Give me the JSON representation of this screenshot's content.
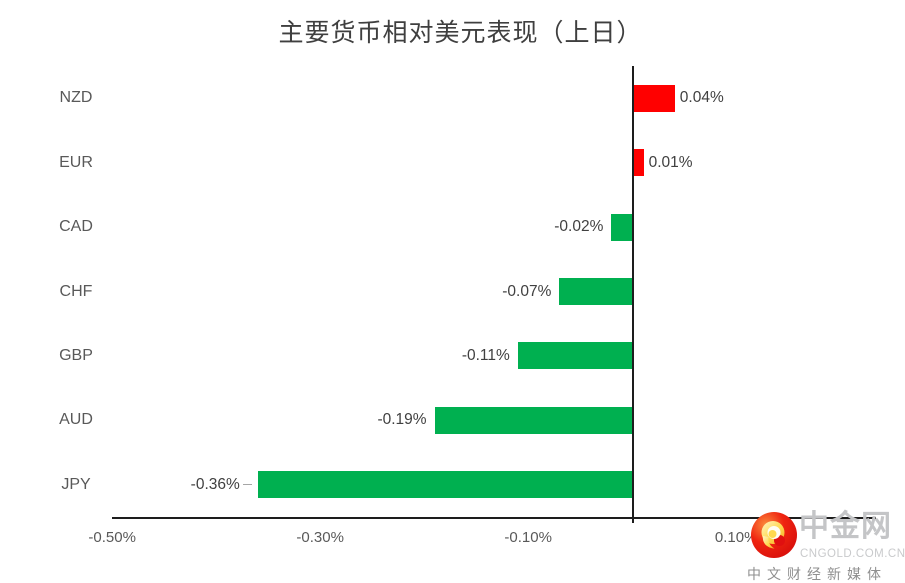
{
  "chart_data": {
    "type": "bar",
    "orientation": "horizontal",
    "title": "主要货币相对美元表现（上日）",
    "categories": [
      "NZD",
      "EUR",
      "CAD",
      "CHF",
      "GBP",
      "AUD",
      "JPY"
    ],
    "values": [
      0.04,
      0.01,
      -0.02,
      -0.07,
      -0.11,
      -0.19,
      -0.36
    ],
    "value_labels": [
      "0.04%",
      "0.01%",
      "-0.02%",
      "-0.07%",
      "-0.11%",
      "-0.19%",
      "-0.36%"
    ],
    "unit": "percent",
    "x_ticks": [
      -0.5,
      -0.3,
      -0.1,
      0.1
    ],
    "x_tick_labels": [
      "-0.50%",
      "-0.30%",
      "-0.10%",
      "0.10%"
    ],
    "xlim": [
      -0.5,
      0.235
    ],
    "positive_color": "#ff0000",
    "negative_color": "#00b050",
    "grid": false,
    "legend": false,
    "leader_line_index": 6
  },
  "watermark": {
    "name": "中金网",
    "domain": "CNGOLD.COM.CN",
    "tagline": "中文财经新媒体"
  }
}
